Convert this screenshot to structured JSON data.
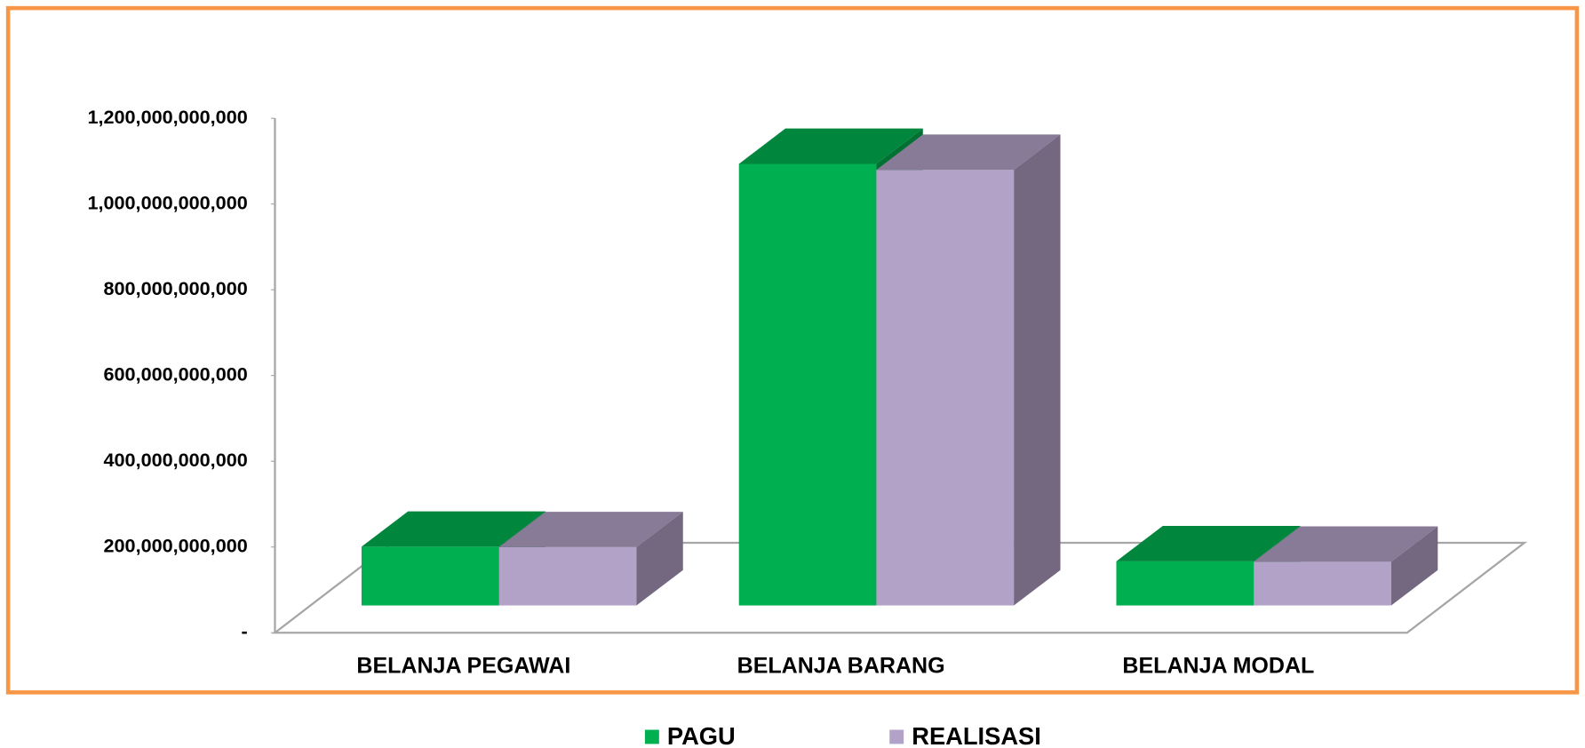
{
  "chart_data": {
    "type": "bar3d",
    "categories": [
      "BELANJA PEGAWAI",
      "BELANJA BARANG",
      "BELANJA MODAL"
    ],
    "series": [
      {
        "name": "PAGU",
        "color": "#00b050",
        "values": [
          137000000000,
          1030000000000,
          103000000000
        ]
      },
      {
        "name": "REALISASI",
        "color": "#b3a2c7",
        "values": [
          136000000000,
          1016000000000,
          102000000000
        ]
      }
    ],
    "ylim": [
      0,
      1200000000000
    ],
    "yticks": [
      {
        "value": 0,
        "label": "-"
      },
      {
        "value": 200000000000,
        "label": "200,000,000,000"
      },
      {
        "value": 400000000000,
        "label": "400,000,000,000"
      },
      {
        "value": 600000000000,
        "label": "600,000,000,000"
      },
      {
        "value": 800000000000,
        "label": "800,000,000,000"
      },
      {
        "value": 1000000000000,
        "label": "1,000,000,000,000"
      },
      {
        "value": 1200000000000,
        "label": "1,200,000,000,000"
      }
    ],
    "legend": "bottom"
  }
}
